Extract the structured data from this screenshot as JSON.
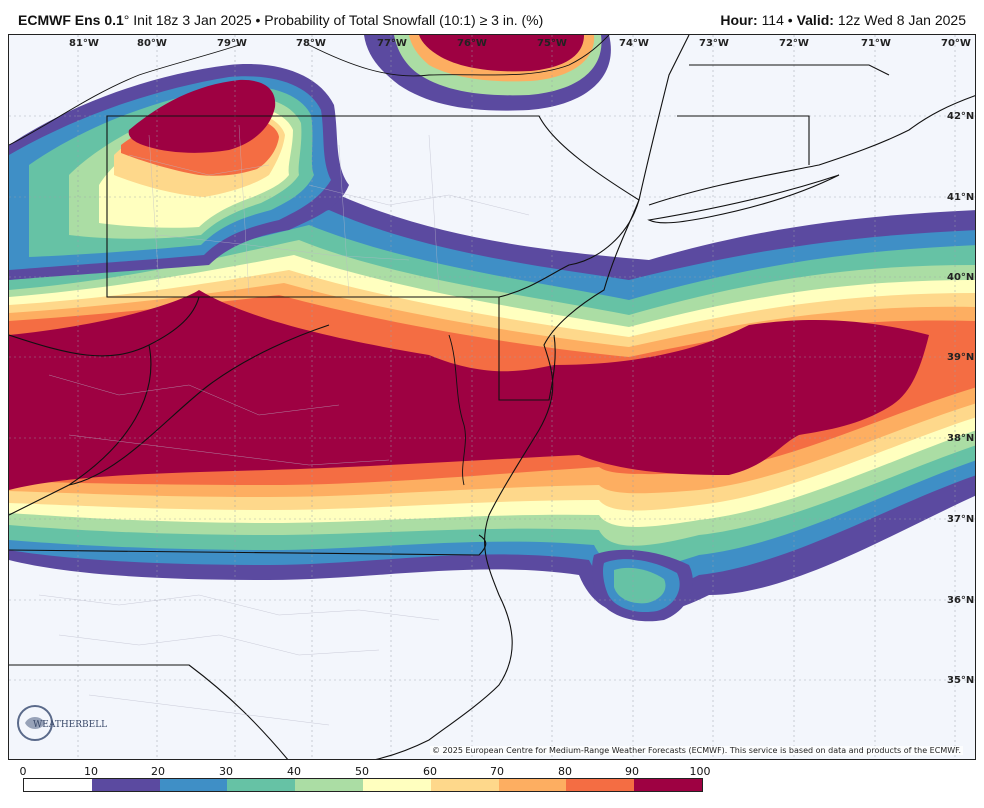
{
  "header": {
    "model": "ECMWF Ens 0.1",
    "degree": "°",
    "init": "Init 18z 3 Jan 2025",
    "bullet": "•",
    "product": "Probability of Total Snowfall (10:1) ≥ 3 in. (%)",
    "hour_label": "Hour:",
    "hour_value": "114",
    "valid_label": "Valid:",
    "valid_value": "12z Wed 8 Jan 2025"
  },
  "map": {
    "longitude_labels": [
      "81°W",
      "80°W",
      "79°W",
      "78°W",
      "77°W",
      "76°W",
      "75°W",
      "74°W",
      "73°W",
      "72°W",
      "71°W",
      "70°W"
    ],
    "latitude_labels": [
      "42°N",
      "41°N",
      "40°N",
      "39°N",
      "38°N",
      "37°N",
      "36°N",
      "35°N"
    ],
    "copyright": "© 2025 European Centre for Medium-Range Weather Forecasts (ECMWF). This service is based on data and products of the ECMWF.",
    "logo_text": "WEATHERBELL",
    "colors": {
      "background": "#f3f6fc",
      "c10_20": "#5b4aa0",
      "c20_30": "#3f8fc6",
      "c30_40": "#66c2a5",
      "c40_50": "#abdda4",
      "c50_60": "#ffffbf",
      "c60_70": "#fed88b",
      "c70_80": "#fdae61",
      "c80_90": "#f46d43",
      "c90_100": "#9e0142"
    }
  },
  "legend": {
    "ticks": [
      "0",
      "10",
      "20",
      "30",
      "40",
      "50",
      "60",
      "70",
      "80",
      "90",
      "100"
    ],
    "colors": [
      "#ffffff",
      "#5b4aa0",
      "#3f8fc6",
      "#66c2a5",
      "#abdda4",
      "#ffffbf",
      "#fed88b",
      "#fdae61",
      "#f46d43",
      "#9e0142"
    ]
  }
}
